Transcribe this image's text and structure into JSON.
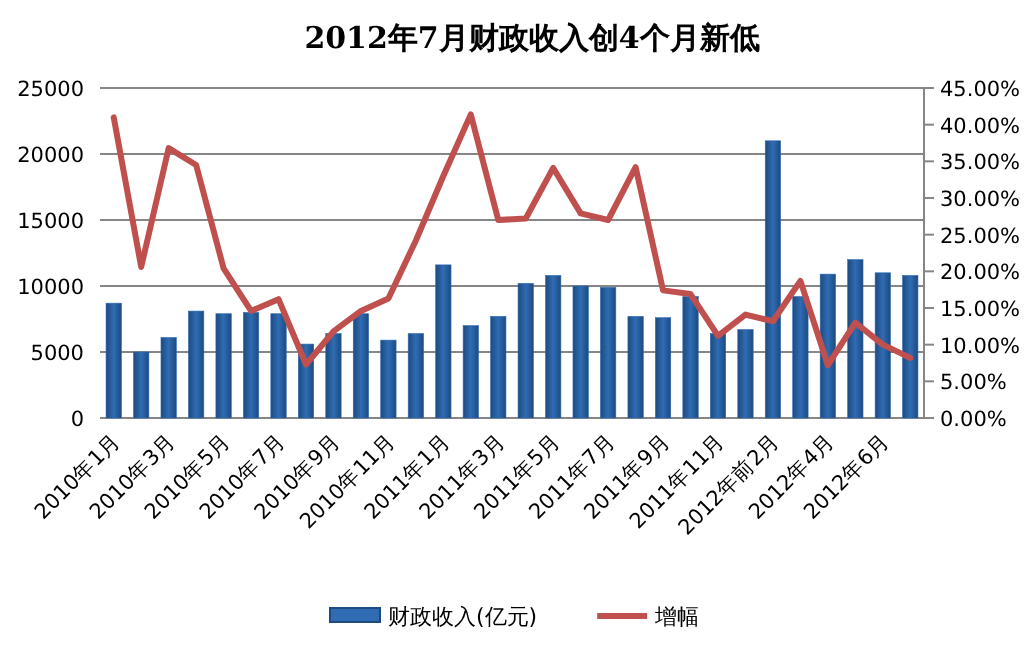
{
  "chart_data": {
    "type": "bar",
    "title": "2012年7月财政收入创4个月新低",
    "categories": [
      "2010年1月",
      null,
      "2010年3月",
      null,
      "2010年5月",
      null,
      "2010年7月",
      null,
      "2010年9月",
      null,
      "2010年11月",
      null,
      "2011年1月",
      null,
      "2011年3月",
      null,
      "2011年5月",
      null,
      "2011年7月",
      null,
      "2011年9月",
      null,
      "2011年11月",
      null,
      "2012年前2月",
      null,
      "2012年4月",
      null,
      "2012年6月",
      null
    ],
    "series": [
      {
        "name": "财政收入(亿元)",
        "color": "#2f6cb3",
        "values": [
          8700,
          5000,
          6100,
          8100,
          7900,
          8000,
          7900,
          5600,
          6400,
          7900,
          5900,
          6400,
          11600,
          7000,
          7700,
          10200,
          10800,
          10000,
          9900,
          7700,
          7600,
          9200,
          6400,
          6700,
          21000,
          9200,
          10900,
          12000,
          11000,
          10800
        ]
      },
      {
        "name": "增幅",
        "type": "line",
        "axis": "y2",
        "color": "#c0504d",
        "values": [
          41.0,
          20.6,
          36.8,
          34.5,
          20.4,
          14.6,
          16.2,
          7.3,
          11.8,
          14.6,
          16.3,
          24.2,
          33.0,
          41.4,
          27.0,
          27.2,
          34.1,
          27.9,
          27.0,
          34.2,
          17.4,
          16.9,
          11.2,
          14.1,
          13.2,
          18.7,
          7.2,
          13.0,
          10.0,
          8.2
        ]
      }
    ],
    "ylim": [
      0,
      25000
    ],
    "yticks": [
      0,
      5000,
      10000,
      15000,
      20000,
      25000
    ],
    "y2lim": [
      0,
      45
    ],
    "y2ticks": [
      {
        "value": 0,
        "label": "0.00%"
      },
      {
        "value": 5,
        "label": "5.00%"
      },
      {
        "value": 10,
        "label": "10.00%"
      },
      {
        "value": 15,
        "label": "15.00%"
      },
      {
        "value": 20,
        "label": "20.00%"
      },
      {
        "value": 25,
        "label": "25.00%"
      },
      {
        "value": 30,
        "label": "30.00%"
      },
      {
        "value": 35,
        "label": "35.00%"
      },
      {
        "value": 40,
        "label": "40.00%"
      },
      {
        "value": 45,
        "label": "45.00%"
      }
    ],
    "grid": "y",
    "legend": "bottom"
  }
}
